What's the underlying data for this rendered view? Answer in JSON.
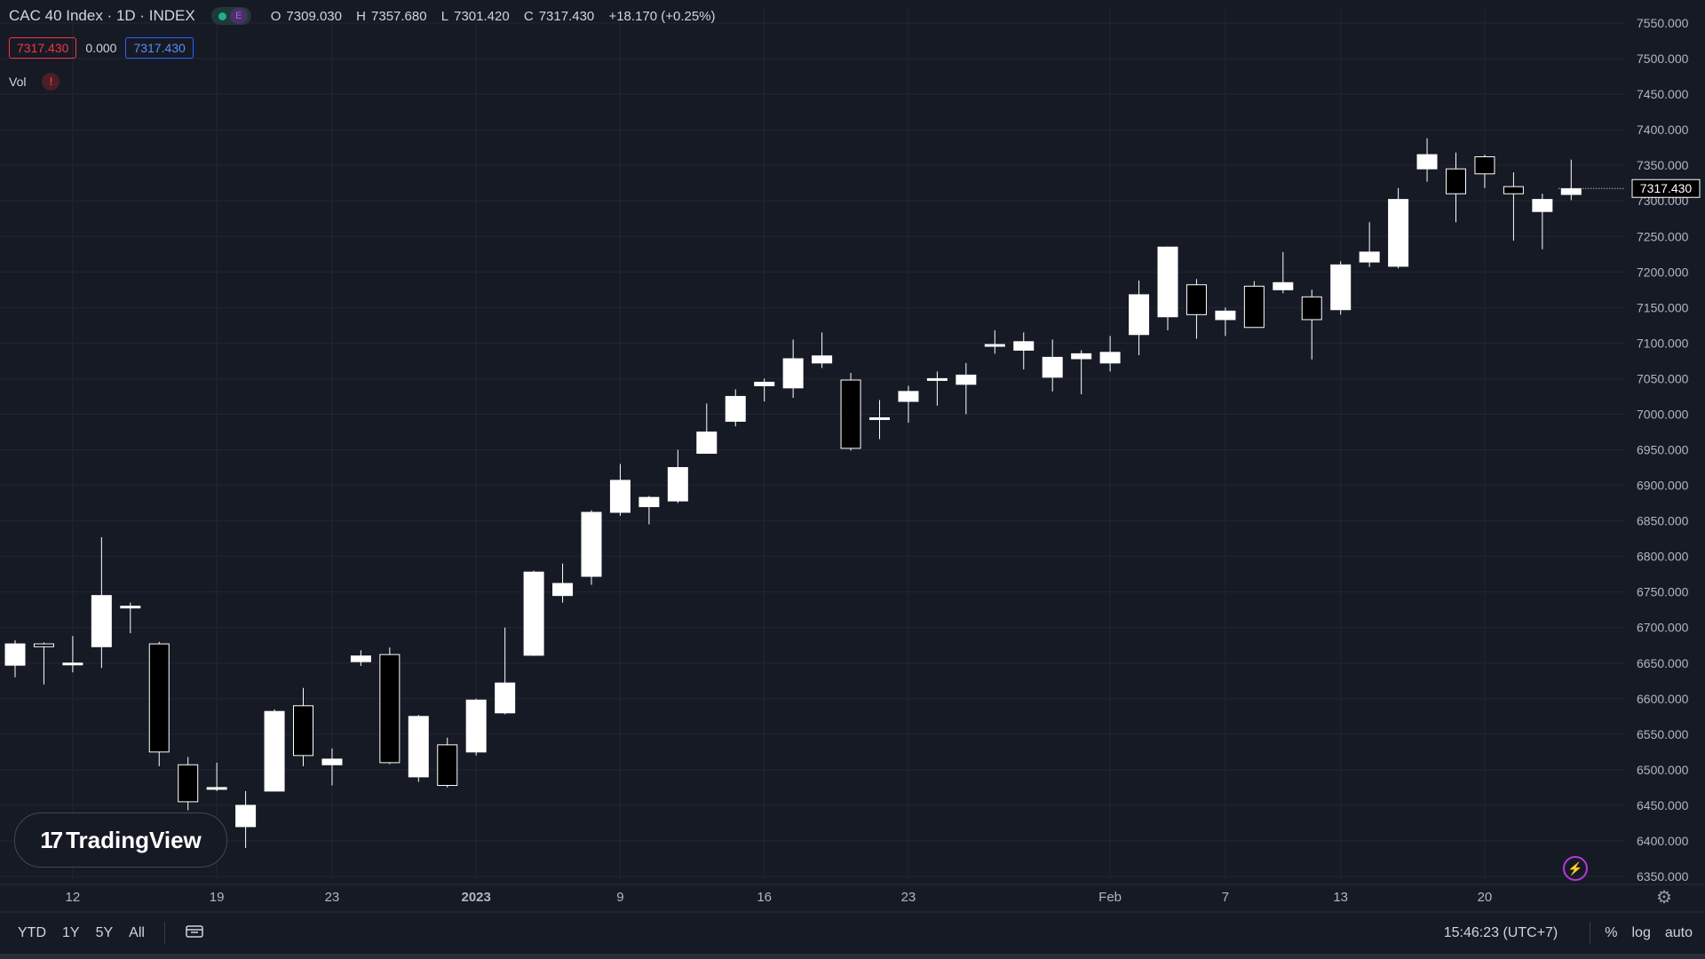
{
  "header": {
    "title": "CAC 40 Index · 1D · INDEX",
    "status_e": "E",
    "ohlc": {
      "open_label": "O",
      "open": "7309.030",
      "high_label": "H",
      "high": "7357.680",
      "low_label": "L",
      "low": "7301.420",
      "close_label": "C",
      "close": "7317.430",
      "change": "+18.170 (+0.25%)"
    },
    "bid": "7317.430",
    "spread": "0.000",
    "ask": "7317.430",
    "volume_label": "Vol",
    "volume_warning": "!"
  },
  "bottom_bar": {
    "ranges": [
      "YTD",
      "1Y",
      "5Y",
      "All"
    ],
    "clock": "15:46:23 (UTC+7)",
    "percent_label": "%",
    "log_label": "log",
    "auto_label": "auto"
  },
  "logo_text": "TradingView",
  "colors": {
    "background": "#161a25",
    "grid": "#232632",
    "candle_body": "#ffffff",
    "candle_border": "#ffffff",
    "bearish_fill": "#000000",
    "text": "#d1d4dc",
    "bid_red": "#f23645",
    "ask_blue": "#2962ff"
  },
  "chart_data": {
    "type": "candlestick",
    "y_axis": {
      "min": 6350,
      "max": 7550,
      "step": 50,
      "ticks": [
        "7550.000",
        "7500.000",
        "7450.000",
        "7400.000",
        "7350.000",
        "7300.000",
        "7250.000",
        "7200.000",
        "7150.000",
        "7100.000",
        "7050.000",
        "7000.000",
        "6950.000",
        "6900.000",
        "6850.000",
        "6800.000",
        "6750.000",
        "6700.000",
        "6650.000",
        "6600.000",
        "6550.000",
        "6500.000",
        "6450.000",
        "6400.000",
        "6350.000"
      ]
    },
    "last_price_label": "7317.430",
    "x_labels": [
      {
        "label": "12",
        "index": 2
      },
      {
        "label": "19",
        "index": 7
      },
      {
        "label": "23",
        "index": 11
      },
      {
        "label": "2023",
        "index": 16,
        "bold": true
      },
      {
        "label": "9",
        "index": 21
      },
      {
        "label": "16",
        "index": 26
      },
      {
        "label": "23",
        "index": 31
      },
      {
        "label": "Feb",
        "index": 38
      },
      {
        "label": "7",
        "index": 42
      },
      {
        "label": "13",
        "index": 46
      },
      {
        "label": "20",
        "index": 51
      }
    ],
    "candles": [
      {
        "o": 6647,
        "h": 6682,
        "l": 6630,
        "c": 6677
      },
      {
        "o": 6677,
        "h": 6679,
        "l": 6620,
        "c": 6673
      },
      {
        "o": 6648,
        "h": 6688,
        "l": 6637,
        "c": 6650
      },
      {
        "o": 6673,
        "h": 6827,
        "l": 6643,
        "c": 6745
      },
      {
        "o": 6730,
        "h": 6735,
        "l": 6692,
        "c": 6730
      },
      {
        "o": 6677,
        "h": 6680,
        "l": 6505,
        "c": 6525
      },
      {
        "o": 6507,
        "h": 6518,
        "l": 6443,
        "c": 6455
      },
      {
        "o": 6475,
        "h": 6510,
        "l": 6470,
        "c": 6475
      },
      {
        "o": 6420,
        "h": 6470,
        "l": 6390,
        "c": 6450
      },
      {
        "o": 6470,
        "h": 6585,
        "l": 6470,
        "c": 6582
      },
      {
        "o": 6590,
        "h": 6615,
        "l": 6505,
        "c": 6520
      },
      {
        "o": 6507,
        "h": 6530,
        "l": 6478,
        "c": 6515
      },
      {
        "o": 6652,
        "h": 6668,
        "l": 6646,
        "c": 6660
      },
      {
        "o": 6662,
        "h": 6672,
        "l": 6508,
        "c": 6510
      },
      {
        "o": 6490,
        "h": 6577,
        "l": 6483,
        "c": 6575
      },
      {
        "o": 6535,
        "h": 6545,
        "l": 6475,
        "c": 6478
      },
      {
        "o": 6525,
        "h": 6600,
        "l": 6520,
        "c": 6598
      },
      {
        "o": 6580,
        "h": 6700,
        "l": 6578,
        "c": 6622
      },
      {
        "o": 6661,
        "h": 6780,
        "l": 6660,
        "c": 6778
      },
      {
        "o": 6745,
        "h": 6790,
        "l": 6735,
        "c": 6762
      },
      {
        "o": 6772,
        "h": 6865,
        "l": 6760,
        "c": 6862
      },
      {
        "o": 6862,
        "h": 6930,
        "l": 6857,
        "c": 6907
      },
      {
        "o": 6870,
        "h": 6885,
        "l": 6845,
        "c": 6883
      },
      {
        "o": 6878,
        "h": 6950,
        "l": 6875,
        "c": 6925
      },
      {
        "o": 6945,
        "h": 7015,
        "l": 6945,
        "c": 6975
      },
      {
        "o": 6990,
        "h": 7035,
        "l": 6983,
        "c": 7025
      },
      {
        "o": 7040,
        "h": 7050,
        "l": 7018,
        "c": 7045
      },
      {
        "o": 7037,
        "h": 7105,
        "l": 7023,
        "c": 7078
      },
      {
        "o": 7072,
        "h": 7115,
        "l": 7065,
        "c": 7082
      },
      {
        "o": 7048,
        "h": 7058,
        "l": 6949,
        "c": 6952
      },
      {
        "o": 6995,
        "h": 7020,
        "l": 6965,
        "c": 6995
      },
      {
        "o": 7018,
        "h": 7040,
        "l": 6988,
        "c": 7032
      },
      {
        "o": 7050,
        "h": 7060,
        "l": 7012,
        "c": 7050
      },
      {
        "o": 7042,
        "h": 7072,
        "l": 7000,
        "c": 7055
      },
      {
        "o": 7098,
        "h": 7118,
        "l": 7085,
        "c": 7098
      },
      {
        "o": 7090,
        "h": 7115,
        "l": 7063,
        "c": 7102
      },
      {
        "o": 7052,
        "h": 7105,
        "l": 7032,
        "c": 7080
      },
      {
        "o": 7078,
        "h": 7090,
        "l": 7028,
        "c": 7085
      },
      {
        "o": 7072,
        "h": 7110,
        "l": 7060,
        "c": 7087
      },
      {
        "o": 7112,
        "h": 7188,
        "l": 7083,
        "c": 7168
      },
      {
        "o": 7137,
        "h": 7236,
        "l": 7118,
        "c": 7235
      },
      {
        "o": 7182,
        "h": 7190,
        "l": 7106,
        "c": 7140
      },
      {
        "o": 7133,
        "h": 7150,
        "l": 7110,
        "c": 7145
      },
      {
        "o": 7180,
        "h": 7187,
        "l": 7122,
        "c": 7122
      },
      {
        "o": 7175,
        "h": 7228,
        "l": 7170,
        "c": 7185
      },
      {
        "o": 7165,
        "h": 7175,
        "l": 7077,
        "c": 7133
      },
      {
        "o": 7147,
        "h": 7215,
        "l": 7140,
        "c": 7210
      },
      {
        "o": 7214,
        "h": 7270,
        "l": 7207,
        "c": 7228
      },
      {
        "o": 7208,
        "h": 7318,
        "l": 7205,
        "c": 7302
      },
      {
        "o": 7345,
        "h": 7388,
        "l": 7327,
        "c": 7365
      },
      {
        "o": 7345,
        "h": 7368,
        "l": 7270,
        "c": 7310
      },
      {
        "o": 7362,
        "h": 7365,
        "l": 7318,
        "c": 7338
      },
      {
        "o": 7320,
        "h": 7340,
        "l": 7244,
        "c": 7310
      },
      {
        "o": 7285,
        "h": 7310,
        "l": 7232,
        "c": 7302
      },
      {
        "o": 7309,
        "h": 7358,
        "l": 7301,
        "c": 7317
      }
    ]
  }
}
